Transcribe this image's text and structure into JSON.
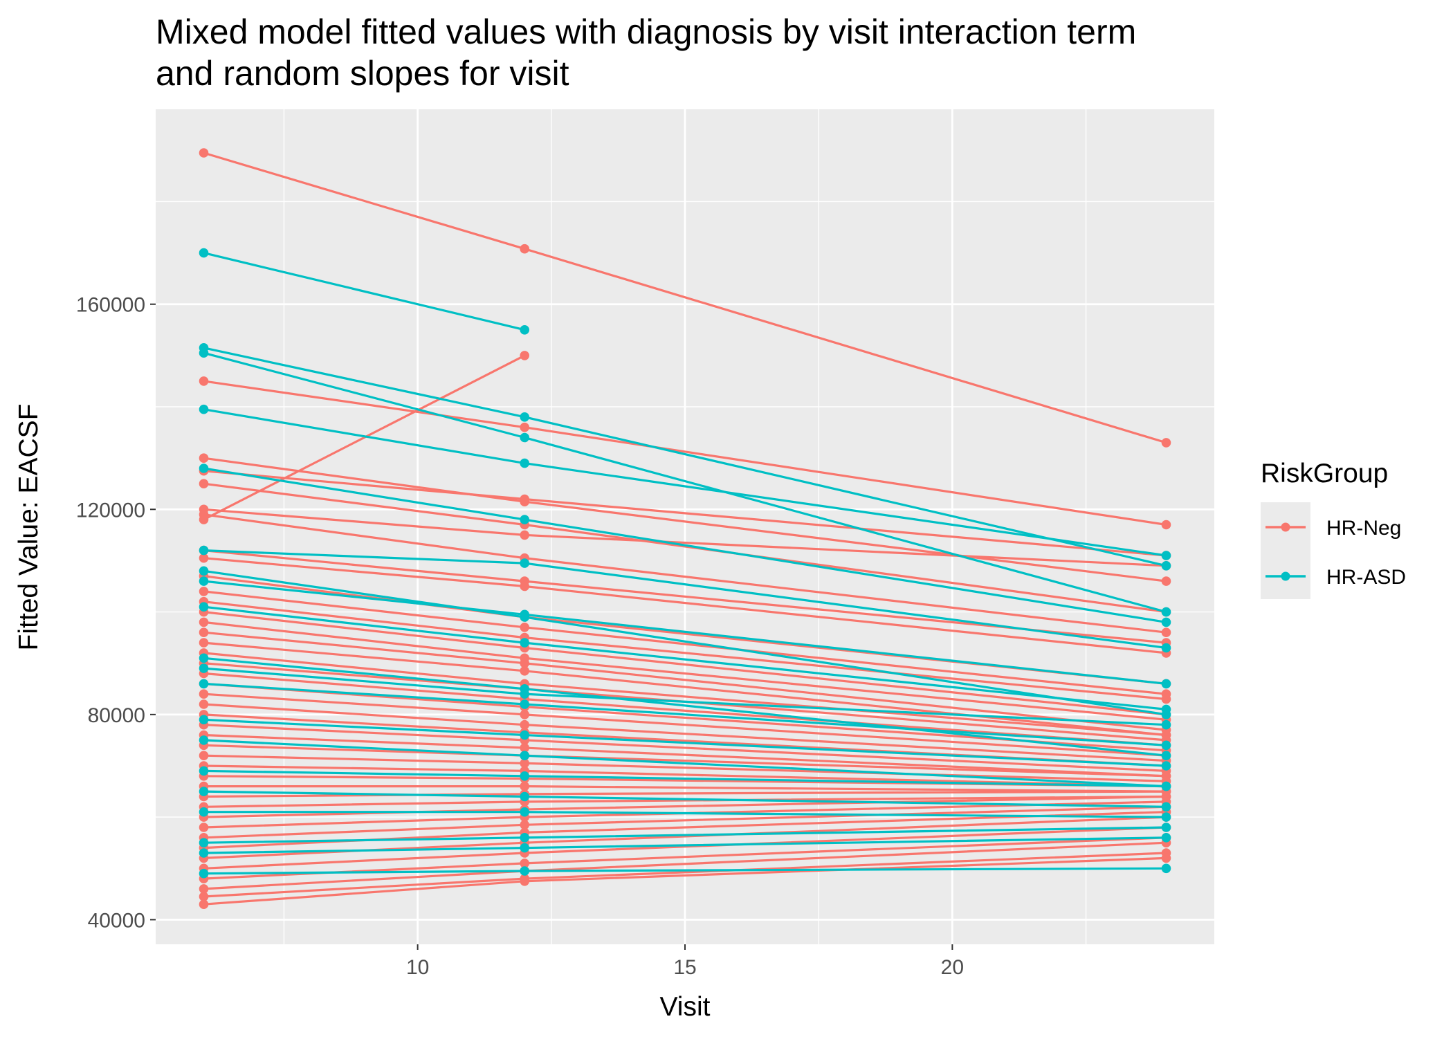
{
  "chart_data": {
    "type": "line",
    "title_lines": [
      "Mixed model fitted values with diagnosis by visit interaction term",
      "and random slopes for visit"
    ],
    "xlabel": "Visit",
    "ylabel": "Fitted Value: EACSF",
    "xlim": [
      5.1,
      24.9
    ],
    "ylim": [
      35200,
      198000
    ],
    "x_ticks": [
      10,
      15,
      20
    ],
    "x_tick_labels": [
      "10",
      "15",
      "20"
    ],
    "y_ticks": [
      40000,
      80000,
      120000,
      160000
    ],
    "y_tick_labels": [
      "40000",
      "80000",
      "120000",
      "160000"
    ],
    "grid": true,
    "legend": {
      "title": "RiskGroup",
      "position": "right"
    },
    "colors": {
      "HR-Neg": "#F8766D",
      "HR-ASD": "#00BFC4",
      "panel": "#EBEBEB",
      "grid": "#FFFFFF"
    },
    "series": [
      {
        "name": "HR-Neg",
        "color": "#F8766D",
        "trajectories": [
          {
            "x": [
              6,
              12,
              24
            ],
            "y": [
              189500,
              170800,
              133000
            ]
          },
          {
            "x": [
              6,
              12,
              24
            ],
            "y": [
              145000,
              136000,
              117000
            ]
          },
          {
            "x": [
              6,
              12,
              24
            ],
            "y": [
              130000,
              121500,
              106000
            ]
          },
          {
            "x": [
              6,
              12,
              24
            ],
            "y": [
              127500,
              122000,
              111000
            ]
          },
          {
            "x": [
              6,
              12,
              24
            ],
            "y": [
              125000,
              117000,
              100000
            ]
          },
          {
            "x": [
              6,
              12,
              24
            ],
            "y": [
              120000,
              115000,
              109000
            ]
          },
          {
            "x": [
              6,
              12,
              24
            ],
            "y": [
              119000,
              110500,
              96000
            ]
          },
          {
            "x": [
              6,
              12
            ],
            "y": [
              118000,
              150000
            ]
          },
          {
            "x": [
              6,
              12,
              24
            ],
            "y": [
              112000,
              106000,
              94000
            ]
          },
          {
            "x": [
              6,
              12,
              24
            ],
            "y": [
              110500,
              105000,
              92000
            ]
          },
          {
            "x": [
              6,
              12,
              24
            ],
            "y": [
              107000,
              99000,
              86000
            ]
          },
          {
            "x": [
              6,
              12,
              24
            ],
            "y": [
              104000,
              97000,
              84000
            ]
          },
          {
            "x": [
              6,
              12,
              24
            ],
            "y": [
              102000,
              95000,
              83000
            ]
          },
          {
            "x": [
              6,
              12,
              24
            ],
            "y": [
              100000,
              93000,
              80000
            ]
          },
          {
            "x": [
              6,
              12,
              24
            ],
            "y": [
              98000,
              91000,
              79000
            ]
          },
          {
            "x": [
              6,
              12,
              24
            ],
            "y": [
              96000,
              90000,
              77000
            ]
          },
          {
            "x": [
              6,
              12,
              24
            ],
            "y": [
              94000,
              88500,
              76000
            ]
          },
          {
            "x": [
              6,
              12,
              24
            ],
            "y": [
              92000,
              86000,
              76000
            ]
          },
          {
            "x": [
              6,
              12,
              24
            ],
            "y": [
              90000,
              85000,
              75000
            ]
          },
          {
            "x": [
              6,
              12,
              24
            ],
            "y": [
              88000,
              83000,
              74000
            ]
          },
          {
            "x": [
              6,
              12,
              24
            ],
            "y": [
              86000,
              81500,
              73000
            ]
          },
          {
            "x": [
              6,
              12,
              24
            ],
            "y": [
              84000,
              80000,
              72000
            ]
          },
          {
            "x": [
              6,
              12,
              24
            ],
            "y": [
              82000,
              78000,
              71000
            ]
          },
          {
            "x": [
              6,
              12,
              24
            ],
            "y": [
              80000,
              76500,
              70000
            ]
          },
          {
            "x": [
              6,
              12,
              24
            ],
            "y": [
              78000,
              75000,
              69000
            ]
          },
          {
            "x": [
              6,
              12,
              24
            ],
            "y": [
              76000,
              73500,
              68000
            ]
          },
          {
            "x": [
              6,
              12,
              24
            ],
            "y": [
              74000,
              72000,
              68000
            ]
          },
          {
            "x": [
              6,
              12,
              24
            ],
            "y": [
              72000,
              70500,
              67000
            ]
          },
          {
            "x": [
              6,
              12,
              24
            ],
            "y": [
              70000,
              69000,
              66000
            ]
          },
          {
            "x": [
              6,
              12,
              24
            ],
            "y": [
              68000,
              67500,
              66000
            ]
          },
          {
            "x": [
              6,
              12,
              24
            ],
            "y": [
              66000,
              66000,
              65000
            ]
          },
          {
            "x": [
              6,
              12,
              24
            ],
            "y": [
              64000,
              64500,
              65000
            ]
          },
          {
            "x": [
              6,
              12,
              24
            ],
            "y": [
              62000,
              63000,
              64000
            ]
          },
          {
            "x": [
              6,
              12,
              24
            ],
            "y": [
              60000,
              61500,
              64000
            ]
          },
          {
            "x": [
              6,
              12,
              24
            ],
            "y": [
              58000,
              60000,
              63000
            ]
          },
          {
            "x": [
              6,
              12,
              24
            ],
            "y": [
              56000,
              58500,
              62000
            ]
          },
          {
            "x": [
              6,
              12,
              24
            ],
            "y": [
              54000,
              57000,
              61000
            ]
          },
          {
            "x": [
              6,
              12,
              24
            ],
            "y": [
              52000,
              55000,
              60000
            ]
          },
          {
            "x": [
              6,
              12,
              24
            ],
            "y": [
              50000,
              53000,
              58000
            ]
          },
          {
            "x": [
              6,
              12,
              24
            ],
            "y": [
              48000,
              51000,
              56000
            ]
          },
          {
            "x": [
              6,
              12,
              24
            ],
            "y": [
              46000,
              49500,
              55000
            ]
          },
          {
            "x": [
              6,
              12,
              24
            ],
            "y": [
              44500,
              48000,
              53000
            ]
          },
          {
            "x": [
              6,
              12,
              24
            ],
            "y": [
              43000,
              47500,
              52000
            ]
          }
        ]
      },
      {
        "name": "HR-ASD",
        "color": "#00BFC4",
        "trajectories": [
          {
            "x": [
              6,
              12
            ],
            "y": [
              170000,
              155000
            ]
          },
          {
            "x": [
              6,
              12,
              24
            ],
            "y": [
              151500,
              138000,
              109000
            ]
          },
          {
            "x": [
              6,
              12,
              24
            ],
            "y": [
              150500,
              134000,
              100000
            ]
          },
          {
            "x": [
              6,
              12,
              24
            ],
            "y": [
              139500,
              129000,
              111000
            ]
          },
          {
            "x": [
              6,
              12,
              24
            ],
            "y": [
              128000,
              118000,
              98000
            ]
          },
          {
            "x": [
              6,
              12,
              24
            ],
            "y": [
              112000,
              109500,
              93000
            ]
          },
          {
            "x": [
              6,
              12,
              24
            ],
            "y": [
              108000,
              99000,
              80000
            ]
          },
          {
            "x": [
              6,
              12,
              24
            ],
            "y": [
              106000,
              99500,
              86000
            ]
          },
          {
            "x": [
              6,
              12,
              24
            ],
            "y": [
              101000,
              94000,
              81000
            ]
          },
          {
            "x": [
              6,
              12,
              24
            ],
            "y": [
              91000,
              85000,
              72000
            ]
          },
          {
            "x": [
              6,
              12,
              24
            ],
            "y": [
              89000,
              84000,
              78000
            ]
          },
          {
            "x": [
              6,
              12,
              24
            ],
            "y": [
              86000,
              82000,
              74000
            ]
          },
          {
            "x": [
              6,
              12,
              24
            ],
            "y": [
              79000,
              76000,
              70000
            ]
          },
          {
            "x": [
              6,
              12,
              24
            ],
            "y": [
              75000,
              72000,
              66000
            ]
          },
          {
            "x": [
              6,
              12,
              24
            ],
            "y": [
              69000,
              68000,
              66000
            ]
          },
          {
            "x": [
              6,
              12,
              24
            ],
            "y": [
              65000,
              64000,
              62000
            ]
          },
          {
            "x": [
              6,
              12,
              24
            ],
            "y": [
              61000,
              61000,
              60000
            ]
          },
          {
            "x": [
              6,
              12,
              24
            ],
            "y": [
              55000,
              56000,
              58000
            ]
          },
          {
            "x": [
              6,
              12,
              24
            ],
            "y": [
              53000,
              54000,
              56000
            ]
          },
          {
            "x": [
              6,
              12,
              24
            ],
            "y": [
              49000,
              49500,
              50000
            ]
          }
        ]
      }
    ]
  }
}
